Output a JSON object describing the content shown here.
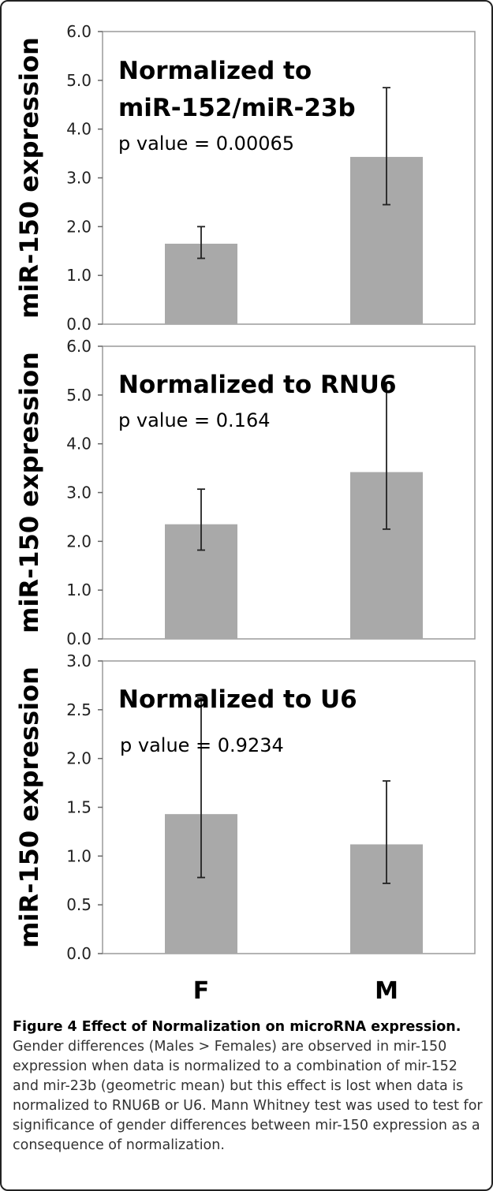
{
  "chart_data": [
    {
      "type": "bar",
      "title": "Normalized to miR-152/miR-23b",
      "title_lines": [
        "Normalized to",
        "miR-152/miR-23b"
      ],
      "annotation": "p value = 0.00065",
      "ylabel": "miR-150 expression",
      "ylim": [
        0,
        6
      ],
      "ytick_labels": [
        "0.0",
        "1.0",
        "2.0",
        "3.0",
        "4.0",
        "5.0",
        "6.0"
      ],
      "categories": [
        "F",
        "M"
      ],
      "values": [
        1.65,
        3.43
      ],
      "error_low": [
        1.35,
        2.45
      ],
      "error_high": [
        2.0,
        4.85
      ],
      "bar_color": "#a9a9a9",
      "grid": false
    },
    {
      "type": "bar",
      "title": "Normalized to RNU6",
      "title_lines": [
        "Normalized to RNU6"
      ],
      "annotation": "p value = 0.164",
      "ylabel": "miR-150 expression",
      "ylim": [
        0,
        6
      ],
      "ytick_labels": [
        "0.0",
        "1.0",
        "2.0",
        "3.0",
        "4.0",
        "5.0",
        "6.0"
      ],
      "categories": [
        "F",
        "M"
      ],
      "values": [
        2.35,
        3.42
      ],
      "error_low": [
        1.82,
        2.25
      ],
      "error_high": [
        3.07,
        5.25
      ],
      "bar_color": "#a9a9a9",
      "grid": false
    },
    {
      "type": "bar",
      "title": "Normalized to U6",
      "title_lines": [
        "Normalized to U6"
      ],
      "annotation": "p value = 0.9234",
      "ylabel": "miR-150 expression",
      "ylim": [
        0,
        3
      ],
      "ytick_labels": [
        "0.0",
        "0.5",
        "1.0",
        "1.5",
        "2.0",
        "2.5",
        "3.0"
      ],
      "categories": [
        "F",
        "M"
      ],
      "values": [
        1.43,
        1.12
      ],
      "error_low": [
        0.78,
        0.72
      ],
      "error_high": [
        2.62,
        1.77
      ],
      "bar_color": "#a9a9a9",
      "grid": false
    }
  ],
  "x_category_labels": [
    "F",
    "M"
  ],
  "caption": {
    "title": "Figure 4 Effect of Normalization on microRNA expression.",
    "body": "Gender differences (Males > Females) are observed in mir-150 expression when data is normalized to a combination of mir-152 and mir-23b (geometric mean) but this effect is lost when data is normalized to RNU6B or U6. Mann Whitney test was used to test for significance of gender differences between mir-150 expression as a consequence of normalization."
  }
}
